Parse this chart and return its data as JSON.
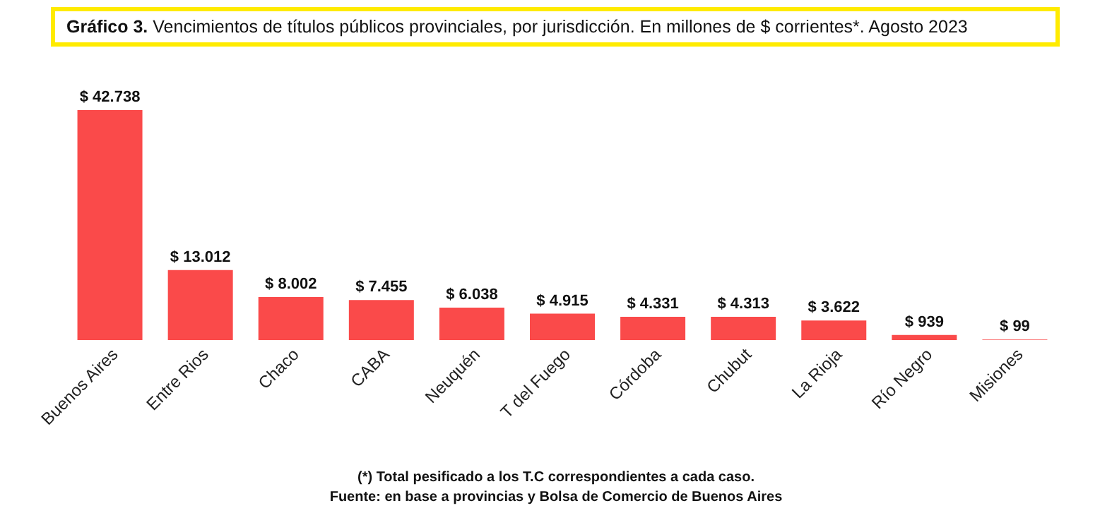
{
  "chart_data": {
    "type": "bar",
    "title": "Gráfico 3. Vencimientos de títulos públicos provinciales, por jurisdicción. En millones de $ corrientes*. Agosto 2023",
    "categories": [
      "Buenos Aires",
      "Entre Rios",
      "Chaco",
      "CABA",
      "Neuquén",
      "T del Fuego",
      "Córdoba",
      "Chubut",
      "La Rioja",
      "Río Negro",
      "Misiones"
    ],
    "values": [
      42738,
      13012,
      8002,
      7455,
      6038,
      4915,
      4331,
      4313,
      3622,
      939,
      99
    ],
    "value_labels": [
      "$ 42.738",
      "$ 13.012",
      "$ 8.002",
      "$ 7.455",
      "$ 6.038",
      "$ 4.915",
      "$ 4.331",
      "$ 4.313",
      "$ 3.622",
      "$ 939",
      "$ 99"
    ],
    "color": "#fa4a4a",
    "annotations": [
      "(*) Total pesificado a los T.C correspondientes a cada caso.",
      "Fuente: en base a provincias y Bolsa de Comercio de Buenos Aires"
    ]
  }
}
